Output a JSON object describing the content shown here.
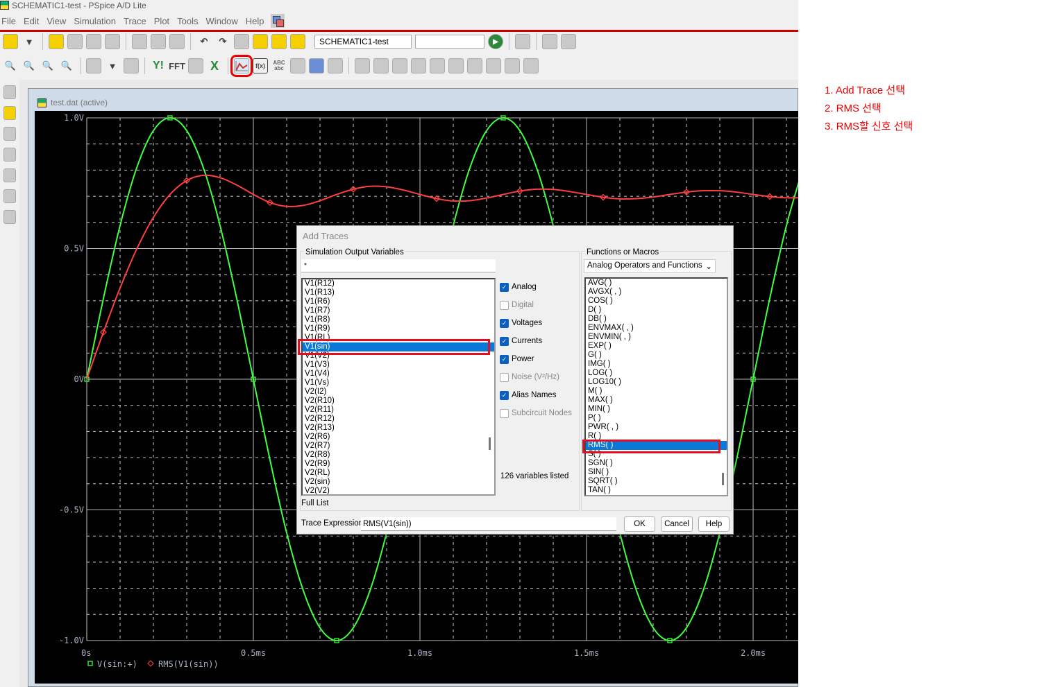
{
  "window": {
    "title": "SCHEMATIC1-test - PSpice A/D Lite"
  },
  "menu": [
    "File",
    "Edit",
    "View",
    "Simulation",
    "Trace",
    "Plot",
    "Tools",
    "Window",
    "Help"
  ],
  "toolbar": {
    "profile": "SCHEMATIC1-test",
    "second_combo": "",
    "fft": "FFT",
    "abc": "ABC\nabc",
    "fx": "f(x)"
  },
  "plot": {
    "tab_title": "test.dat (active)"
  },
  "annotations": [
    "1.  Add Trace 선택",
    "2. RMS 선택",
    "3. RMS할 신호 선택"
  ],
  "dialog": {
    "title": "Add Traces",
    "sim_group": "Simulation Output Variables",
    "filter": "*",
    "variables": [
      "V1(R12)",
      "V1(R13)",
      "V1(R6)",
      "V1(R7)",
      "V1(R8)",
      "V1(R9)",
      "V1(RL)",
      "V1(sin)",
      "V1(V2)",
      "V1(V3)",
      "V1(V4)",
      "V1(Vs)",
      "V2(I2)",
      "V2(R10)",
      "V2(R11)",
      "V2(R12)",
      "V2(R13)",
      "V2(R6)",
      "V2(R7)",
      "V2(R8)",
      "V2(R9)",
      "V2(RL)",
      "V2(sin)",
      "V2(V2)"
    ],
    "selected_variable": "V1(sin)",
    "checkboxes": [
      {
        "label": "Analog",
        "checked": true
      },
      {
        "label": "Digital",
        "checked": false
      },
      {
        "label": "Voltages",
        "checked": true
      },
      {
        "label": "Currents",
        "checked": true
      },
      {
        "label": "Power",
        "checked": true
      },
      {
        "label": "Noise (V²/Hz)",
        "checked": false
      },
      {
        "label": "Alias Names",
        "checked": true
      },
      {
        "label": "Subcircuit Nodes",
        "checked": false
      }
    ],
    "count": "126 variables listed",
    "full_list": "Full List",
    "func_group": "Functions or Macros",
    "func_category": "Analog Operators and Functions",
    "functions": [
      "AVG( )",
      "AVGX( , )",
      "COS( )",
      "D( )",
      "DB( )",
      "ENVMAX( , )",
      "ENVMIN( , )",
      "EXP( )",
      "G( )",
      "IMG( )",
      "LOG( )",
      "LOG10( )",
      "M( )",
      "MAX( )",
      "MIN( )",
      "P( )",
      "PWR( , )",
      "R( )",
      "RMS( )",
      "S( )",
      "SGN( )",
      "SIN( )",
      "SQRT( )",
      "TAN( )"
    ],
    "selected_function": "RMS( )",
    "expr_label": "Trace Expression:",
    "expression": "RMS(V1(sin))",
    "ok": "OK",
    "cancel": "Cancel",
    "help": "Help"
  },
  "chart_data": {
    "type": "line",
    "xlim": [
      0,
      2.13
    ],
    "ylim": [
      -1.0,
      1.0
    ],
    "x_ticks": [
      {
        "v": 0,
        "label": "0s"
      },
      {
        "v": 0.5,
        "label": "0.5ms"
      },
      {
        "v": 1.0,
        "label": "1.0ms"
      },
      {
        "v": 1.5,
        "label": "1.5ms"
      },
      {
        "v": 2.0,
        "label": "2.0ms"
      }
    ],
    "y_ticks": [
      {
        "v": 1.0,
        "label": "1.0V"
      },
      {
        "v": 0.5,
        "label": "0.5V"
      },
      {
        "v": 0,
        "label": "0V"
      },
      {
        "v": -0.5,
        "label": "-0.5V"
      },
      {
        "v": -1.0,
        "label": "-1.0V"
      }
    ],
    "grid": true,
    "legend_position": "bottom-left",
    "x": [
      0,
      0.05,
      0.1,
      0.15,
      0.2,
      0.25,
      0.3,
      0.35,
      0.4,
      0.45,
      0.5,
      0.55,
      0.6,
      0.65,
      0.7,
      0.75,
      0.8,
      0.85,
      0.9,
      0.95,
      1.0,
      1.05,
      1.1,
      1.15,
      1.2,
      1.25,
      1.3,
      1.35,
      1.4,
      1.45,
      1.5,
      1.55,
      1.6,
      1.65,
      1.7,
      1.75,
      1.8,
      1.85,
      1.9,
      1.95,
      2.0,
      2.05,
      2.1,
      2.15
    ],
    "series": [
      {
        "name": "V(sin:+)",
        "color": "#40ff40",
        "marker": "square",
        "values": [
          0,
          0.309,
          0.588,
          0.809,
          0.951,
          1,
          0.951,
          0.809,
          0.588,
          0.309,
          0,
          -0.309,
          -0.588,
          -0.809,
          -0.951,
          -1,
          -0.951,
          -0.809,
          -0.588,
          -0.309,
          0,
          0.309,
          0.588,
          0.809,
          0.951,
          1,
          0.951,
          0.809,
          0.588,
          0.309,
          0,
          -0.309,
          -0.588,
          -0.809,
          -0.951,
          -1,
          -0.951,
          -0.809,
          -0.588,
          -0.309,
          0,
          0.309,
          0.588,
          0.809
        ]
      },
      {
        "name": "RMS(V1(sin))",
        "color": "#ff4040",
        "marker": "diamond",
        "values": [
          0,
          0.18,
          0.349,
          0.498,
          0.619,
          0.707,
          0.76,
          0.78,
          0.771,
          0.743,
          0.707,
          0.676,
          0.661,
          0.665,
          0.683,
          0.707,
          0.727,
          0.738,
          0.736,
          0.724,
          0.707,
          0.691,
          0.682,
          0.683,
          0.693,
          0.707,
          0.72,
          0.727,
          0.726,
          0.718,
          0.707,
          0.696,
          0.69,
          0.691,
          0.697,
          0.707,
          0.716,
          0.721,
          0.721,
          0.716,
          0.707,
          0.699,
          0.694,
          0.695
        ]
      }
    ]
  }
}
